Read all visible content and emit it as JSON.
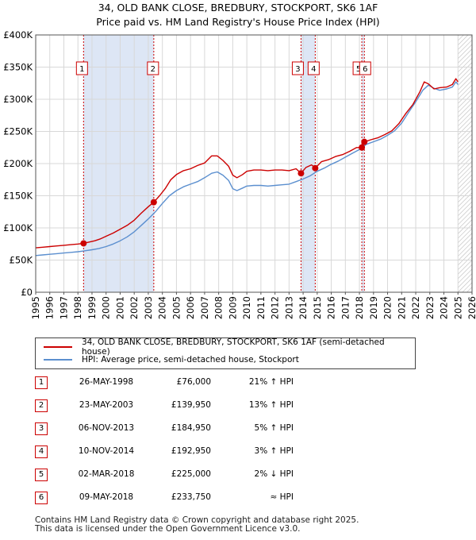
{
  "title_line1": "34, OLD BANK CLOSE, BREDBURY, STOCKPORT, SK6 1AF",
  "title_line2": "Price paid vs. HM Land Registry's House Price Index (HPI)",
  "colors": {
    "price": "#cc0000",
    "hpi": "#5b8fcf",
    "shade": "#dde6f5",
    "grid": "#d8d8d8",
    "marker_line": "#cc0000"
  },
  "chart_data": {
    "type": "line",
    "xlim": [
      1995,
      2026
    ],
    "ylim": [
      0,
      400000
    ],
    "x_ticks": [
      "1995",
      "1996",
      "1997",
      "1998",
      "1999",
      "2000",
      "2001",
      "2002",
      "2003",
      "2004",
      "2005",
      "2006",
      "2007",
      "2008",
      "2009",
      "2010",
      "2011",
      "2012",
      "2013",
      "2014",
      "2015",
      "2016",
      "2017",
      "2018",
      "2019",
      "2020",
      "2021",
      "2022",
      "2023",
      "2024",
      "2025",
      "2026"
    ],
    "y_ticks": [
      {
        "value": 0,
        "label": "£0"
      },
      {
        "value": 50000,
        "label": "£50K"
      },
      {
        "value": 100000,
        "label": "£100K"
      },
      {
        "value": 150000,
        "label": "£150K"
      },
      {
        "value": 200000,
        "label": "£200K"
      },
      {
        "value": 250000,
        "label": "£250K"
      },
      {
        "value": 300000,
        "label": "£300K"
      },
      {
        "value": 350000,
        "label": "£350K"
      },
      {
        "value": 400000,
        "label": "£400K"
      }
    ],
    "shaded_ranges": [
      [
        1998.4,
        2003.39
      ],
      [
        2013.85,
        2014.86
      ],
      [
        2018.17,
        2018.35
      ]
    ],
    "forecast_from": 2025.0,
    "series": [
      {
        "name": "34, OLD BANK CLOSE, BREDBURY, STOCKPORT, SK6 1AF (semi-detached house)",
        "color": "#cc0000",
        "x": [
          1995.0,
          1995.5,
          1996.0,
          1996.5,
          1997.0,
          1997.5,
          1998.0,
          1998.4,
          1998.8,
          1999.2,
          1999.6,
          2000.0,
          2000.5,
          2001.0,
          2001.5,
          2002.0,
          2002.5,
          2003.0,
          2003.39,
          2003.8,
          2004.2,
          2004.6,
          2005.0,
          2005.5,
          2006.0,
          2006.5,
          2007.0,
          2007.5,
          2007.9,
          2008.3,
          2008.7,
          2009.0,
          2009.3,
          2009.7,
          2010.0,
          2010.5,
          2011.0,
          2011.5,
          2012.0,
          2012.5,
          2013.0,
          2013.5,
          2013.85,
          2014.2,
          2014.6,
          2014.86,
          2015.3,
          2015.8,
          2016.3,
          2016.8,
          2017.3,
          2017.8,
          2018.17,
          2018.35,
          2018.8,
          2019.3,
          2019.8,
          2020.3,
          2020.8,
          2021.3,
          2021.8,
          2022.3,
          2022.6,
          2022.9,
          2023.3,
          2023.7,
          2024.2,
          2024.6,
          2024.85,
          2025.0
        ],
        "values": [
          69000,
          70000,
          71000,
          72000,
          73000,
          74000,
          75000,
          76000,
          78000,
          80000,
          83000,
          87000,
          92000,
          98000,
          104000,
          112000,
          123000,
          133000,
          139950,
          150000,
          161000,
          175000,
          183000,
          189000,
          192000,
          197000,
          201000,
          212000,
          212000,
          205000,
          196000,
          182000,
          178000,
          183000,
          188000,
          190000,
          190000,
          189000,
          190000,
          190000,
          189000,
          192000,
          184950,
          194000,
          198000,
          192950,
          203000,
          206000,
          211000,
          214000,
          219000,
          225000,
          225000,
          233750,
          237000,
          240000,
          245000,
          251000,
          262000,
          278000,
          292000,
          312000,
          327000,
          324000,
          316000,
          318000,
          319000,
          323000,
          332000,
          327000
        ]
      },
      {
        "name": "HPI: Average price, semi-detached house, Stockport",
        "color": "#5b8fcf",
        "x": [
          1995.0,
          1995.5,
          1996.0,
          1996.5,
          1997.0,
          1997.5,
          1998.0,
          1998.5,
          1999.0,
          1999.5,
          2000.0,
          2000.5,
          2001.0,
          2001.5,
          2002.0,
          2002.5,
          2003.0,
          2003.5,
          2004.0,
          2004.5,
          2005.0,
          2005.5,
          2006.0,
          2006.5,
          2007.0,
          2007.5,
          2007.9,
          2008.3,
          2008.7,
          2009.0,
          2009.3,
          2009.7,
          2010.0,
          2010.5,
          2011.0,
          2011.5,
          2012.0,
          2012.5,
          2013.0,
          2013.5,
          2014.0,
          2014.5,
          2015.0,
          2015.5,
          2016.0,
          2016.5,
          2017.0,
          2017.5,
          2018.0,
          2018.5,
          2019.0,
          2019.5,
          2020.0,
          2020.5,
          2021.0,
          2021.5,
          2022.0,
          2022.5,
          2022.9,
          2023.3,
          2023.7,
          2024.2,
          2024.6,
          2024.85,
          2025.0
        ],
        "values": [
          57000,
          58000,
          59000,
          60000,
          61000,
          62000,
          63000,
          64500,
          66000,
          68000,
          71000,
          75000,
          80000,
          86000,
          94000,
          104000,
          114000,
          125000,
          138000,
          150000,
          158000,
          164000,
          168000,
          172000,
          178000,
          185000,
          187000,
          182000,
          174000,
          161000,
          158000,
          162000,
          165000,
          166000,
          166000,
          165000,
          166000,
          167000,
          168000,
          172000,
          176000,
          181000,
          188000,
          193000,
          199000,
          204000,
          210000,
          216000,
          222000,
          230000,
          234000,
          238000,
          244000,
          251000,
          263000,
          280000,
          296000,
          314000,
          322000,
          317000,
          314000,
          316000,
          319000,
          327000,
          323000
        ]
      }
    ],
    "sale_markers": [
      {
        "id": "1",
        "x": 1998.4,
        "value": 76000
      },
      {
        "id": "2",
        "x": 2003.39,
        "value": 139950
      },
      {
        "id": "3",
        "x": 2013.85,
        "value": 184950
      },
      {
        "id": "4",
        "x": 2014.86,
        "value": 192950
      },
      {
        "id": "5",
        "x": 2018.17,
        "value": 225000
      },
      {
        "id": "6",
        "x": 2018.35,
        "value": 233750
      }
    ]
  },
  "legend": {
    "price_label": "34, OLD BANK CLOSE, BREDBURY, STOCKPORT, SK6 1AF (semi-detached house)",
    "hpi_label": "HPI: Average price, semi-detached house, Stockport"
  },
  "sales": [
    {
      "num": "1",
      "date": "26-MAY-1998",
      "price": "£76,000",
      "hpi": "21% ↑ HPI"
    },
    {
      "num": "2",
      "date": "23-MAY-2003",
      "price": "£139,950",
      "hpi": "13% ↑ HPI"
    },
    {
      "num": "3",
      "date": "06-NOV-2013",
      "price": "£184,950",
      "hpi": "5% ↑ HPI"
    },
    {
      "num": "4",
      "date": "10-NOV-2014",
      "price": "£192,950",
      "hpi": "3% ↑ HPI"
    },
    {
      "num": "5",
      "date": "02-MAR-2018",
      "price": "£225,000",
      "hpi": "2% ↓ HPI"
    },
    {
      "num": "6",
      "date": "09-MAY-2018",
      "price": "£233,750",
      "hpi": "≈ HPI"
    }
  ],
  "footer_line1": "Contains HM Land Registry data © Crown copyright and database right 2025.",
  "footer_line2": "This data is licensed under the Open Government Licence v3.0."
}
